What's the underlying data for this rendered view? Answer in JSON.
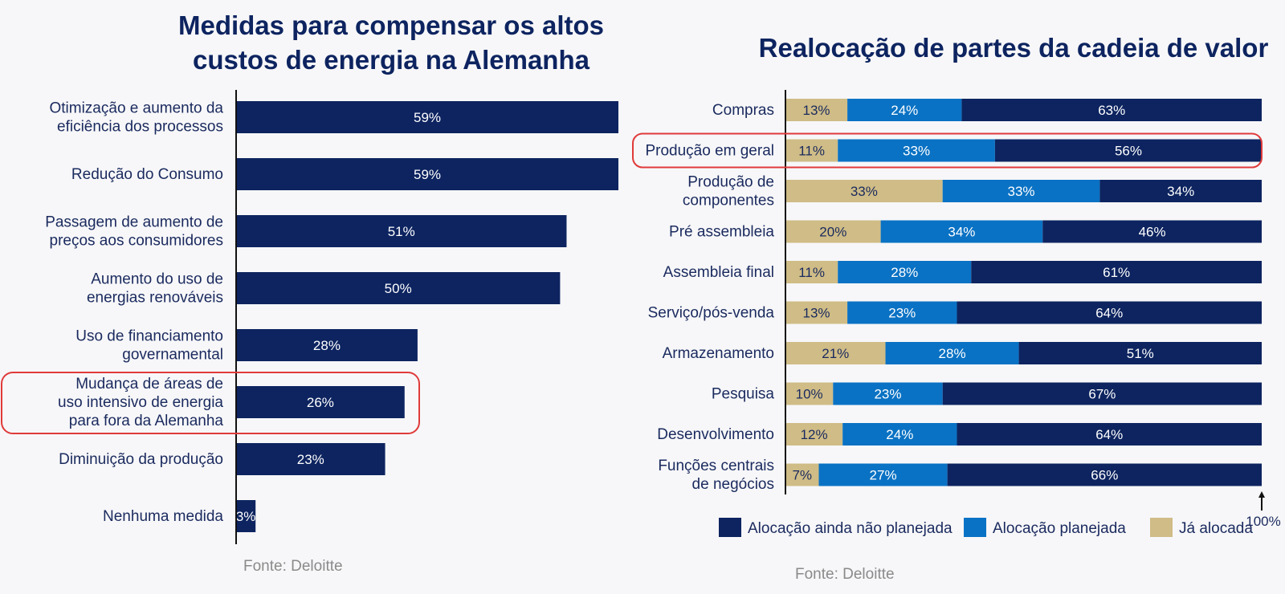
{
  "colors": {
    "navy": "#0d2460",
    "blue": "#0a72c4",
    "tan": "#cfbc86",
    "highlight": "#e03a3a",
    "text": "#1a2a5e",
    "source": "#8a8a8a"
  },
  "chart_data": [
    {
      "type": "bar",
      "orientation": "horizontal",
      "title": [
        "Medidas para compensar os altos",
        "custos de energia na Alemanha"
      ],
      "categories": [
        [
          "Otimização e aumento da",
          "eficiência dos processos"
        ],
        [
          "Redução do Consumo"
        ],
        [
          "Passagem de aumento de",
          "preços aos consumidores"
        ],
        [
          "Aumento do uso de",
          "energias renováveis"
        ],
        [
          "Uso de financiamento",
          "governamental"
        ],
        [
          "Mudança de áreas de",
          "uso intensivo de energia",
          "para fora da Alemanha"
        ],
        [
          "Diminuição da produção"
        ],
        [
          "Nenhuma medida"
        ]
      ],
      "values": [
        59,
        59,
        51,
        50,
        28,
        26,
        23,
        3
      ],
      "value_labels": [
        "59%",
        "59%",
        "51%",
        "50%",
        "28%",
        "26%",
        "23%",
        "3%"
      ],
      "highlighted_index": 5,
      "source": "Fonte: Deloitte",
      "xlim": [
        0,
        59
      ]
    },
    {
      "type": "bar",
      "orientation": "horizontal",
      "stacked": true,
      "title": [
        "Realocação de partes da cadeia de valor"
      ],
      "categories": [
        [
          "Compras"
        ],
        [
          "Produção em geral"
        ],
        [
          "Produção de",
          "componentes"
        ],
        [
          "Pré assembleia"
        ],
        [
          "Assembleia final"
        ],
        [
          "Serviço/pós-venda"
        ],
        [
          "Armazenamento"
        ],
        [
          "Pesquisa"
        ],
        [
          "Desenvolvimento"
        ],
        [
          "Funções centrais",
          "de negócios"
        ]
      ],
      "series": [
        {
          "name": "Já alocada",
          "values": [
            13,
            11,
            33,
            20,
            11,
            13,
            21,
            10,
            12,
            7
          ],
          "labels": [
            "13%",
            "11%",
            "33%",
            "20%",
            "11%",
            "13%",
            "21%",
            "10%",
            "12%",
            "7%"
          ]
        },
        {
          "name": "Alocação planejada",
          "values": [
            24,
            33,
            33,
            34,
            28,
            23,
            28,
            23,
            24,
            27
          ],
          "labels": [
            "24%",
            "33%",
            "33%",
            "34%",
            "28%",
            "23%",
            "28%",
            "23%",
            "24%",
            "27%"
          ]
        },
        {
          "name": "Alocação ainda não planejada",
          "values": [
            63,
            56,
            34,
            46,
            61,
            64,
            51,
            67,
            64,
            66
          ],
          "labels": [
            "63%",
            "56%",
            "34%",
            "46%",
            "61%",
            "64%",
            "51%",
            "67%",
            "64%",
            "66%"
          ]
        }
      ],
      "legend": [
        "Alocação ainda não planejada",
        "Alocação planejada",
        "Já alocada"
      ],
      "legend_position": "bottom",
      "end_marker": "100%",
      "highlighted_index": 1,
      "source": "Fonte: Deloitte",
      "xlim": [
        0,
        100
      ]
    }
  ]
}
